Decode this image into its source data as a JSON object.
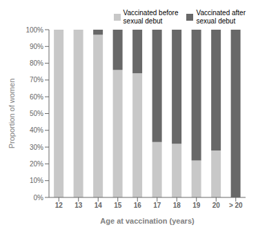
{
  "chart_data": {
    "type": "bar",
    "stacked": true,
    "categories": [
      "12",
      "13",
      "14",
      "15",
      "16",
      "17",
      "18",
      "19",
      "20",
      "> 20"
    ],
    "series": [
      {
        "name": "Vaccinated before\nsexual debut",
        "color": "#c8c8c8",
        "values": [
          1.0,
          1.0,
          0.97,
          0.76,
          0.74,
          0.33,
          0.32,
          0.22,
          0.28,
          0.0
        ]
      },
      {
        "name": "Vaccinated after\nsexual debut",
        "color": "#686868",
        "values": [
          0.0,
          0.0,
          0.03,
          0.24,
          0.26,
          0.67,
          0.68,
          0.78,
          0.72,
          1.0
        ]
      }
    ],
    "ylabel": "Proportion of women",
    "xlabel": "Age at vaccination (years)",
    "ylim": [
      0,
      1.0
    ],
    "yticks": [
      {
        "value": 0.0,
        "label": "0%"
      },
      {
        "value": 0.1,
        "label": "10%"
      },
      {
        "value": 0.2,
        "label": "20%"
      },
      {
        "value": 0.3,
        "label": "30%"
      },
      {
        "value": 0.4,
        "label": "40%"
      },
      {
        "value": 0.5,
        "label": "50%"
      },
      {
        "value": 0.6,
        "label": "60%"
      },
      {
        "value": 0.7,
        "label": "70%"
      },
      {
        "value": 0.8,
        "label": "80%"
      },
      {
        "value": 0.9,
        "label": "90%"
      },
      {
        "value": 1.0,
        "label": "100%"
      }
    ],
    "legend": "upper right"
  }
}
